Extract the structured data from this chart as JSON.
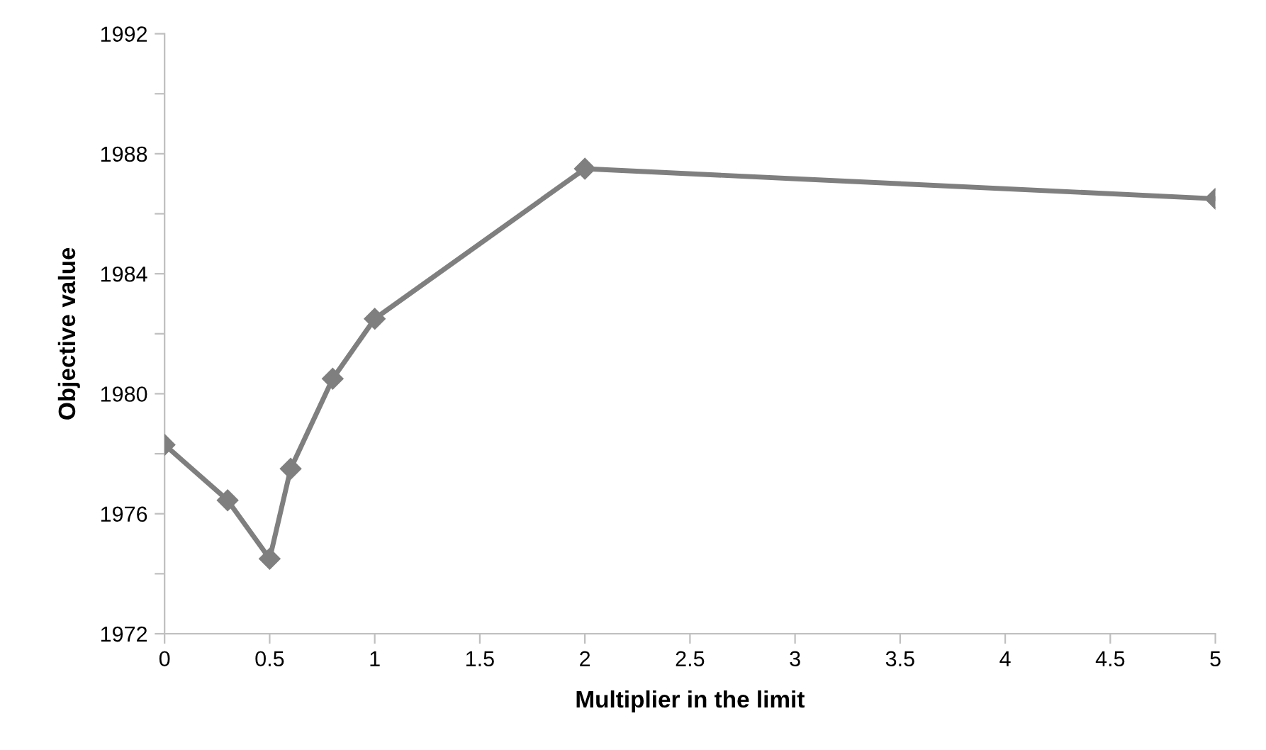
{
  "chart_data": {
    "type": "line",
    "xlabel": "Multiplier in the limit",
    "ylabel": "Objective value",
    "x": [
      0,
      0.3,
      0.5,
      0.6,
      0.8,
      1,
      2,
      5
    ],
    "series": [
      {
        "color": "#7f7f7f",
        "values": [
          1978.3,
          1976.45,
          1974.5,
          1977.5,
          1980.5,
          1982.5,
          1987.5,
          1986.5
        ]
      }
    ],
    "marker": "diamond",
    "line_style": "solid",
    "grid": false,
    "legend": false,
    "xlim": [
      0,
      5
    ],
    "xticks": [
      0,
      0.5,
      1,
      1.5,
      2,
      2.5,
      3,
      3.5,
      4,
      4.5,
      5
    ],
    "ylim": [
      1972,
      1992
    ],
    "yticks": [
      1972,
      {
        "value": 1974,
        "label": null
      },
      1976,
      {
        "value": 1978,
        "label": null
      },
      1980,
      {
        "value": 1982,
        "label": null
      },
      1984,
      {
        "value": 1986,
        "label": null
      },
      1988,
      {
        "value": 1990,
        "label": null
      },
      1992
    ]
  }
}
